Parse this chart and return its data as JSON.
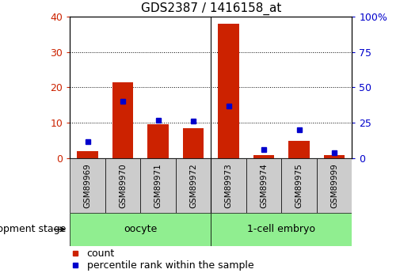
{
  "title": "GDS2387 / 1416158_at",
  "samples": [
    "GSM89969",
    "GSM89970",
    "GSM89971",
    "GSM89972",
    "GSM89973",
    "GSM89974",
    "GSM89975",
    "GSM89999"
  ],
  "count_values": [
    2.0,
    21.5,
    9.5,
    8.5,
    38.0,
    1.0,
    5.0,
    1.0
  ],
  "percentile_values": [
    12.0,
    40.0,
    27.0,
    26.0,
    37.0,
    6.0,
    20.0,
    4.0
  ],
  "groups": [
    {
      "label": "oocyte",
      "start": 0,
      "end": 3,
      "color": "#90EE90"
    },
    {
      "label": "1-cell embryo",
      "start": 4,
      "end": 7,
      "color": "#90EE90"
    }
  ],
  "bar_color": "#CC2200",
  "percentile_color": "#0000CC",
  "left_ylim": [
    0,
    40
  ],
  "right_ylim": [
    0,
    100
  ],
  "left_yticks": [
    0,
    10,
    20,
    30,
    40
  ],
  "right_yticks": [
    0,
    25,
    50,
    75,
    100
  ],
  "right_yticklabels": [
    "0",
    "25",
    "50",
    "75",
    "100%"
  ],
  "tick_label_color_left": "#CC2200",
  "tick_label_color_right": "#0000CC",
  "bar_width": 0.6,
  "group_label": "development stage",
  "bg_color_plot": "white",
  "bg_color_xticklabels": "#CCCCCC",
  "xticklabel_fontsize": 7.5,
  "group_fontsize": 9,
  "title_fontsize": 11
}
